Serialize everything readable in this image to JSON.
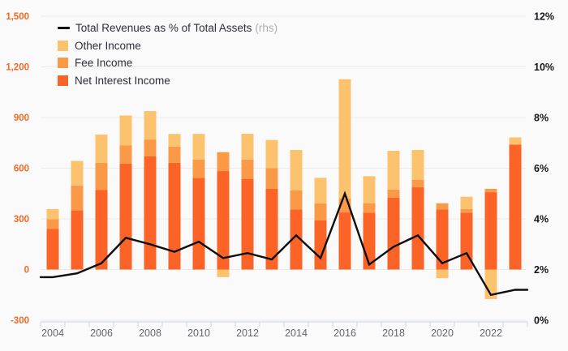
{
  "legend": {
    "items": [
      {
        "label": "Total Revenues as % of Total Assets",
        "suffix": "(rhs)",
        "swatch": "line"
      },
      {
        "label": "Other Income",
        "swatch": "other"
      },
      {
        "label": "Fee Income",
        "swatch": "fee"
      },
      {
        "label": "Net Interest Income",
        "swatch": "net_interest"
      }
    ]
  },
  "colors": {
    "background": "#fafafa",
    "grid": "#ebebeb",
    "axis_line": "#c9d2e2",
    "left_axis_text": "#f26a21",
    "right_axis_text": "#16161c",
    "x_axis_text": "#65656e",
    "net_interest": "#FB6426",
    "fee": "#FA9A49",
    "other": "#FCC26E",
    "line": "#0d0d0d",
    "legend_text": "#2e2e38",
    "rhs_note": "#aeaeb4"
  },
  "chart_data": {
    "type": "bar",
    "subtype": "stacked-bar-with-line",
    "categories": [
      "2004",
      "2005",
      "2006",
      "2007",
      "2008",
      "2009",
      "2010",
      "2011",
      "2012",
      "2013",
      "2014",
      "2015",
      "2016",
      "2017",
      "2018",
      "2019",
      "2020",
      "2021",
      "2022",
      "2023"
    ],
    "series": [
      {
        "name": "Net Interest Income",
        "type": "bar",
        "axis": "left",
        "values": [
          240,
          350,
          472,
          628,
          670,
          632,
          543,
          583,
          537,
          479,
          356,
          292,
          338,
          337,
          425,
          487,
          356,
          337,
          458,
          740
        ]
      },
      {
        "name": "Fee Income",
        "type": "bar",
        "axis": "left",
        "values": [
          58,
          148,
          160,
          108,
          100,
          96,
          108,
          112,
          115,
          122,
          112,
          99,
          82,
          56,
          48,
          45,
          36,
          22,
          20,
          0
        ]
      },
      {
        "name": "Other Income",
        "type": "bar",
        "axis": "left",
        "values": [
          60,
          145,
          167,
          176,
          168,
          75,
          152,
          -45,
          152,
          166,
          240,
          152,
          707,
          160,
          230,
          176,
          -51,
          72,
          -175,
          42
        ]
      },
      {
        "name": "Total Revenues as % of Total Assets (rhs)",
        "type": "line",
        "axis": "right",
        "values": [
          1.7,
          1.85,
          2.25,
          3.25,
          3.0,
          2.7,
          3.1,
          2.45,
          2.65,
          2.4,
          3.35,
          2.45,
          5.0,
          2.2,
          2.9,
          3.35,
          2.25,
          2.65,
          1.0,
          1.2
        ]
      }
    ],
    "left_axis": {
      "range": [
        -300,
        1500
      ],
      "ticks": [
        {
          "label": "1,500",
          "value": 1500
        },
        {
          "label": "1,200",
          "value": 1200
        },
        {
          "label": "900",
          "value": 900
        },
        {
          "label": "600",
          "value": 600
        },
        {
          "label": "300",
          "value": 300
        },
        {
          "label": "0",
          "value": 0
        },
        {
          "label": "-300",
          "value": -300
        }
      ]
    },
    "right_axis": {
      "range": [
        0,
        12
      ],
      "ticks": [
        {
          "label": "12%",
          "value": 12
        },
        {
          "label": "10%",
          "value": 10
        },
        {
          "label": "8%",
          "value": 8
        },
        {
          "label": "6%",
          "value": 6
        },
        {
          "label": "4%",
          "value": 4
        },
        {
          "label": "2%",
          "value": 2
        },
        {
          "label": "0%",
          "value": 0
        }
      ]
    },
    "x_ticks": [
      {
        "label": "2004",
        "slot": 0
      },
      {
        "label": "2006",
        "slot": 2
      },
      {
        "label": "2008",
        "slot": 4
      },
      {
        "label": "2010",
        "slot": 6
      },
      {
        "label": "2012",
        "slot": 8
      },
      {
        "label": "2014",
        "slot": 10
      },
      {
        "label": "2016",
        "slot": 12
      },
      {
        "label": "2018",
        "slot": 14
      },
      {
        "label": "2020",
        "slot": 16
      },
      {
        "label": "2022",
        "slot": 18
      }
    ],
    "grid": true,
    "legend_position": "top-left"
  }
}
